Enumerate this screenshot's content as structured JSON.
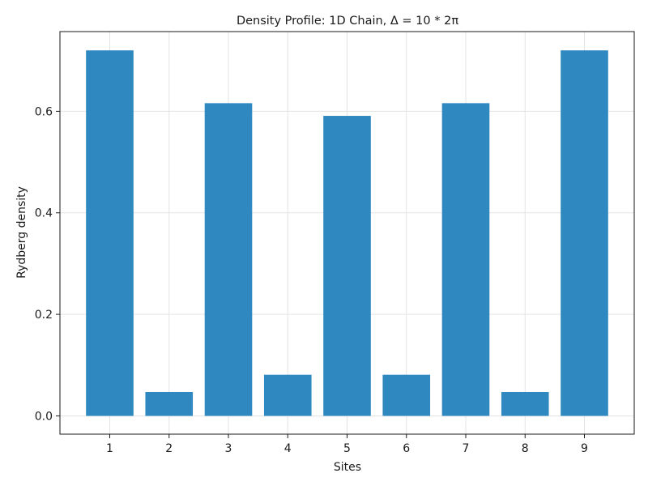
{
  "chart_data": {
    "type": "bar",
    "title": "Density Profile: 1D Chain, Δ = 10 * 2π",
    "xlabel": "Sites",
    "ylabel": "Rydberg density",
    "categories": [
      "1",
      "2",
      "3",
      "4",
      "5",
      "6",
      "7",
      "8",
      "9"
    ],
    "values": [
      0.72,
      0.047,
      0.616,
      0.081,
      0.591,
      0.081,
      0.616,
      0.047,
      0.72
    ],
    "ylim": [
      -0.036,
      0.757
    ],
    "yticks": [
      0.0,
      0.2,
      0.4,
      0.6
    ],
    "ytick_labels": [
      "0.0",
      "0.2",
      "0.4",
      "0.6"
    ],
    "grid": true,
    "bar_color": "#2f89c0"
  }
}
